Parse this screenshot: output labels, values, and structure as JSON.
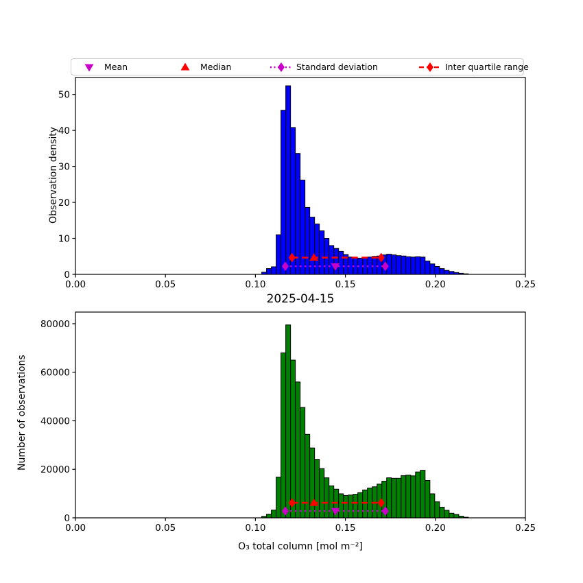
{
  "figure": {
    "background": "#ffffff",
    "title": "2025-04-15",
    "xlabel": "O₃ total column [mol m⁻²]"
  },
  "legend": {
    "border_color": "#cccccc",
    "items": [
      {
        "label": "Mean",
        "marker": "triangle-down",
        "color": "#c800c8",
        "line": "none"
      },
      {
        "label": "Median",
        "marker": "triangle-up",
        "color": "#ff0000",
        "line": "none"
      },
      {
        "label": "Standard deviation",
        "marker": "diamond",
        "color": "#c800c8",
        "line": "dotted"
      },
      {
        "label": "Inter quartile range",
        "marker": "diamond",
        "color": "#ff0000",
        "line": "dashed"
      }
    ]
  },
  "chart_data": [
    {
      "type": "bar",
      "panel": "top",
      "ylabel": "Observation density",
      "bar_color": "#0000ff",
      "bar_edge_color": "#000000",
      "xlim": [
        0.0,
        0.25
      ],
      "ylim": [
        0.0,
        54.7
      ],
      "xticks": [
        0.0,
        0.05,
        0.1,
        0.15,
        0.2,
        0.25
      ],
      "xtick_labels": [
        "0.00",
        "0.05",
        "0.10",
        "0.15",
        "0.20",
        "0.25"
      ],
      "yticks": [
        0,
        10,
        20,
        30,
        40,
        50
      ],
      "ytick_labels": [
        "0",
        "10",
        "20",
        "30",
        "40",
        "50"
      ],
      "bin_start": 0.1035,
      "bin_width": 0.00267,
      "values": [
        0.6,
        1.6,
        2.1,
        11.0,
        45.6,
        52.4,
        40.8,
        33.6,
        26.2,
        18.6,
        15.9,
        14.0,
        12.1,
        10.0,
        8.0,
        7.2,
        6.4,
        5.5,
        4.8,
        4.5,
        4.5,
        4.7,
        4.8,
        5.0,
        5.1,
        5.4,
        5.6,
        5.4,
        5.2,
        5.1,
        4.9,
        4.8,
        4.9,
        4.8,
        3.7,
        2.9,
        2.2,
        1.6,
        1.1,
        0.8,
        0.5,
        0.3,
        0.15
      ],
      "stats": {
        "mean": 0.1444,
        "median": 0.1325,
        "std": 0.0278,
        "q1": 0.1203,
        "q3": 0.1699,
        "iqr_line_y": 4.65,
        "std_line_y": 2.25
      },
      "grid": false
    },
    {
      "type": "bar",
      "panel": "bottom",
      "title": "2025-04-15",
      "ylabel": "Number of observations",
      "xlabel": "O₃ total column [mol m⁻²]",
      "bar_color": "#008000",
      "bar_edge_color": "#000000",
      "xlim": [
        0.0,
        0.25
      ],
      "ylim": [
        0,
        84800
      ],
      "xticks": [
        0.0,
        0.05,
        0.1,
        0.15,
        0.2,
        0.25
      ],
      "xtick_labels": [
        "0.00",
        "0.05",
        "0.10",
        "0.15",
        "0.20",
        "0.25"
      ],
      "yticks": [
        0,
        20000,
        40000,
        60000,
        80000
      ],
      "ytick_labels": [
        "0",
        "20000",
        "40000",
        "60000",
        "80000"
      ],
      "bin_start": 0.1035,
      "bin_width": 0.00267,
      "values": [
        600,
        1500,
        3200,
        16800,
        68000,
        79500,
        65000,
        56000,
        45500,
        34400,
        28800,
        24100,
        20300,
        16500,
        13200,
        11800,
        9900,
        9200,
        9400,
        9700,
        10400,
        11500,
        12300,
        12800,
        13900,
        15100,
        16500,
        16300,
        16300,
        17400,
        17600,
        17300,
        18900,
        19600,
        15400,
        9900,
        6600,
        4400,
        3100,
        1900,
        1400,
        700,
        250
      ],
      "stats": {
        "mean": 0.1444,
        "median": 0.1325,
        "std": 0.0278,
        "q1": 0.1203,
        "q3": 0.1699,
        "iqr_line_y": 6200,
        "std_line_y": 2800
      },
      "grid": false
    }
  ],
  "colors": {
    "mean_marker": "#c800c8",
    "median_marker": "#ff0000",
    "std_line": "#c800c8",
    "iqr_line": "#ff0000",
    "axes_frame": "#000000"
  }
}
